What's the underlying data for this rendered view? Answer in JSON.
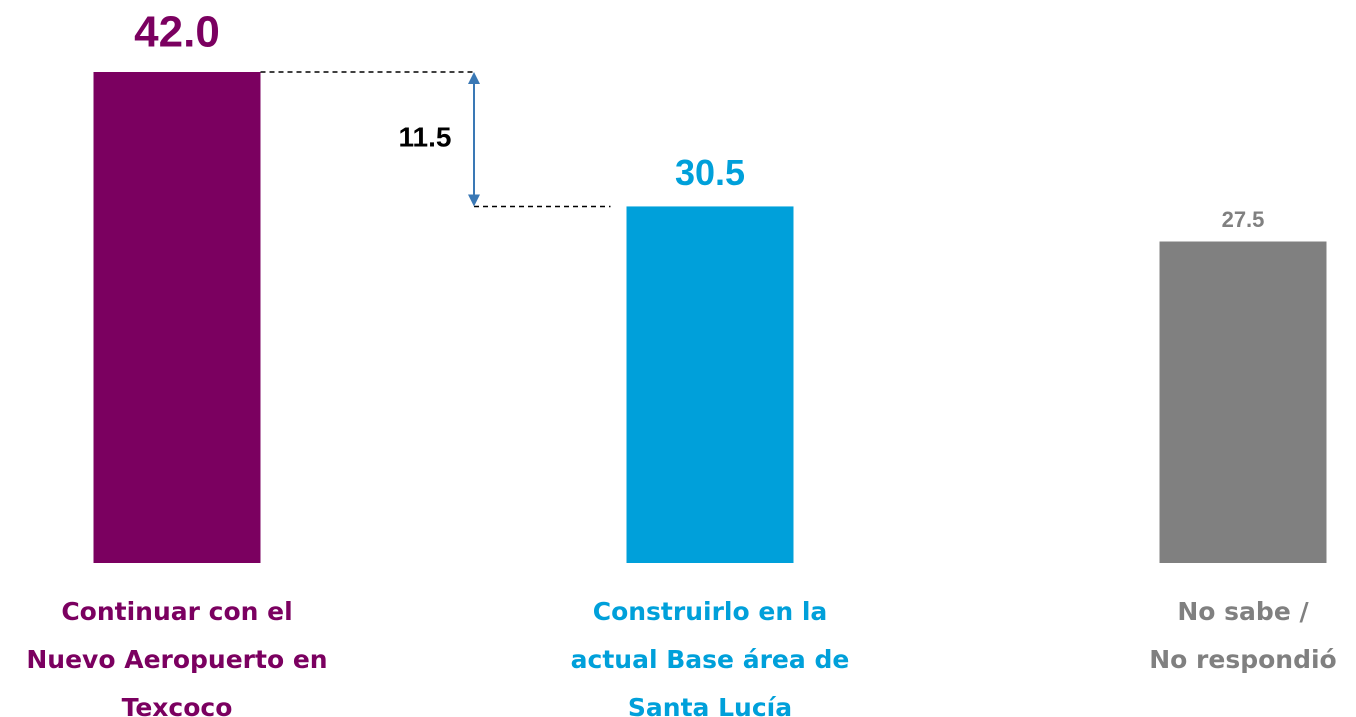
{
  "chart_data": {
    "type": "bar",
    "categories": [
      "Continuar con el\nNuevo Aeropuerto en\nTexcoco",
      "Construirlo en la\nactual Base área de\nSanta Lucía",
      "No sabe /\nNo respondió"
    ],
    "values": [
      42.0,
      30.5,
      27.5
    ],
    "value_labels": [
      "42.0",
      "30.5",
      "27.5"
    ],
    "colors": [
      "#7b0060",
      "#00a0da",
      "#808080"
    ],
    "difference": 11.5,
    "difference_color": "#3a78b5"
  }
}
